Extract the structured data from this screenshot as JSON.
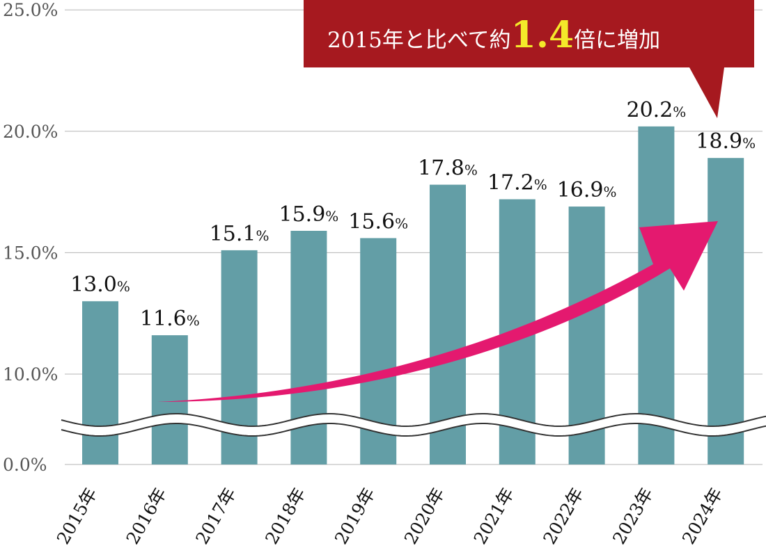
{
  "chart_data": {
    "type": "bar",
    "categories": [
      "2015年",
      "2016年",
      "2017年",
      "2018年",
      "2019年",
      "2020年",
      "2021年",
      "2022年",
      "2023年",
      "2024年"
    ],
    "values": [
      13.0,
      11.6,
      15.1,
      15.9,
      15.6,
      17.8,
      17.2,
      16.9,
      20.2,
      18.9
    ],
    "value_labels": [
      {
        "num": "13.0",
        "unit": "%"
      },
      {
        "num": "11.6",
        "unit": "%"
      },
      {
        "num": "15.1",
        "unit": "%"
      },
      {
        "num": "15.9",
        "unit": "%"
      },
      {
        "num": "15.6",
        "unit": "%"
      },
      {
        "num": "17.8",
        "unit": "%"
      },
      {
        "num": "17.2",
        "unit": "%"
      },
      {
        "num": "16.9",
        "unit": "%"
      },
      {
        "num": "20.2",
        "unit": "%"
      },
      {
        "num": "18.9",
        "unit": "%"
      }
    ],
    "y_ticks": [
      {
        "value": 0,
        "label": "0.0%"
      },
      {
        "value": 10,
        "label": "10.0%"
      },
      {
        "value": 15,
        "label": "15.0%"
      },
      {
        "value": 20,
        "label": "20.0%"
      },
      {
        "value": 25,
        "label": "25.0%"
      }
    ],
    "ylim": [
      0,
      25
    ],
    "axis_break": {
      "between": [
        0,
        10
      ]
    },
    "grid": true,
    "bar_color": "#639ea6",
    "grid_color": "#b5b5b5"
  },
  "callout": {
    "text_before": "2015年と比べて約",
    "highlight": "1.4",
    "text_after": "倍に増加",
    "background": "#a6191f",
    "text_color": "#ffffff",
    "highlight_color": "#f4e92a"
  },
  "trend_arrow": {
    "color": "#e4196f"
  }
}
